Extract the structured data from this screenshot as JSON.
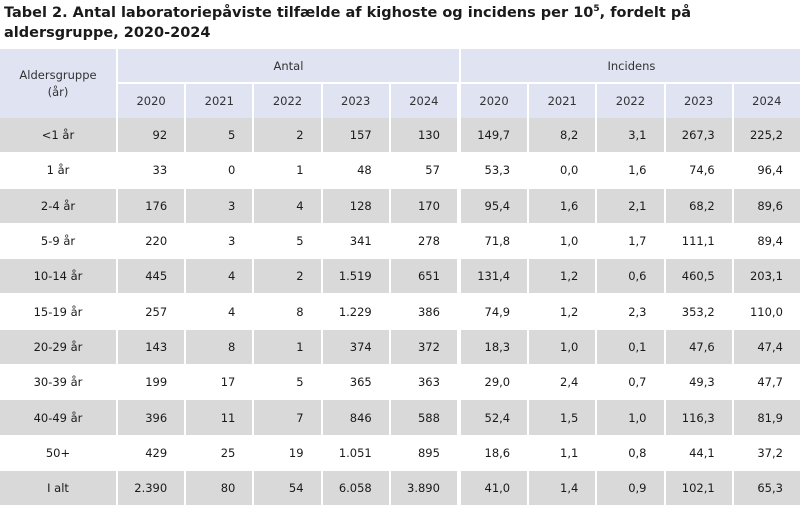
{
  "title_main": "Tabel 2. Antal laboratoriepåviste tilfælde af kighoste og incidens per 10",
  "title_sup": "5",
  "title_rest": ", fordelt på aldersgruppe, 2020-2024",
  "header": {
    "age_line1": "Aldersgruppe",
    "age_line2": "(år)",
    "group_antal": "Antal",
    "group_incidens": "Incidens",
    "years": [
      "2020",
      "2021",
      "2022",
      "2023",
      "2024"
    ]
  },
  "rows": [
    {
      "label": "<1 år",
      "antal": [
        "92",
        "5",
        "2",
        "157",
        "130"
      ],
      "incidens": [
        "149,7",
        "8,2",
        "3,1",
        "267,3",
        "225,2"
      ]
    },
    {
      "label": "1 år",
      "antal": [
        "33",
        "0",
        "1",
        "48",
        "57"
      ],
      "incidens": [
        "53,3",
        "0,0",
        "1,6",
        "74,6",
        "96,4"
      ]
    },
    {
      "label": "2-4 år",
      "antal": [
        "176",
        "3",
        "4",
        "128",
        "170"
      ],
      "incidens": [
        "95,4",
        "1,6",
        "2,1",
        "68,2",
        "89,6"
      ]
    },
    {
      "label": "5-9 år",
      "antal": [
        "220",
        "3",
        "5",
        "341",
        "278"
      ],
      "incidens": [
        "71,8",
        "1,0",
        "1,7",
        "111,1",
        "89,4"
      ]
    },
    {
      "label": "10-14 år",
      "antal": [
        "445",
        "4",
        "2",
        "1.519",
        "651"
      ],
      "incidens": [
        "131,4",
        "1,2",
        "0,6",
        "460,5",
        "203,1"
      ]
    },
    {
      "label": "15-19 år",
      "antal": [
        "257",
        "4",
        "8",
        "1.229",
        "386"
      ],
      "incidens": [
        "74,9",
        "1,2",
        "2,3",
        "353,2",
        "110,0"
      ]
    },
    {
      "label": "20-29 år",
      "antal": [
        "143",
        "8",
        "1",
        "374",
        "372"
      ],
      "incidens": [
        "18,3",
        "1,0",
        "0,1",
        "47,6",
        "47,4"
      ]
    },
    {
      "label": "30-39 år",
      "antal": [
        "199",
        "17",
        "5",
        "365",
        "363"
      ],
      "incidens": [
        "29,0",
        "2,4",
        "0,7",
        "49,3",
        "47,7"
      ]
    },
    {
      "label": "40-49 år",
      "antal": [
        "396",
        "11",
        "7",
        "846",
        "588"
      ],
      "incidens": [
        "52,4",
        "1,5",
        "1,0",
        "116,3",
        "81,9"
      ]
    },
    {
      "label": "50+",
      "antal": [
        "429",
        "25",
        "19",
        "1.051",
        "895"
      ],
      "incidens": [
        "18,6",
        "1,1",
        "0,8",
        "44,1",
        "37,2"
      ]
    },
    {
      "label": "I alt",
      "antal": [
        "2.390",
        "80",
        "54",
        "6.058",
        "3.890"
      ],
      "incidens": [
        "41,0",
        "1,4",
        "0,9",
        "102,1",
        "65,3"
      ]
    }
  ],
  "colors": {
    "header_bg": "#dfe3f2",
    "shaded_row_bg": "#d9d9d9",
    "plain_row_bg": "#ffffff"
  }
}
